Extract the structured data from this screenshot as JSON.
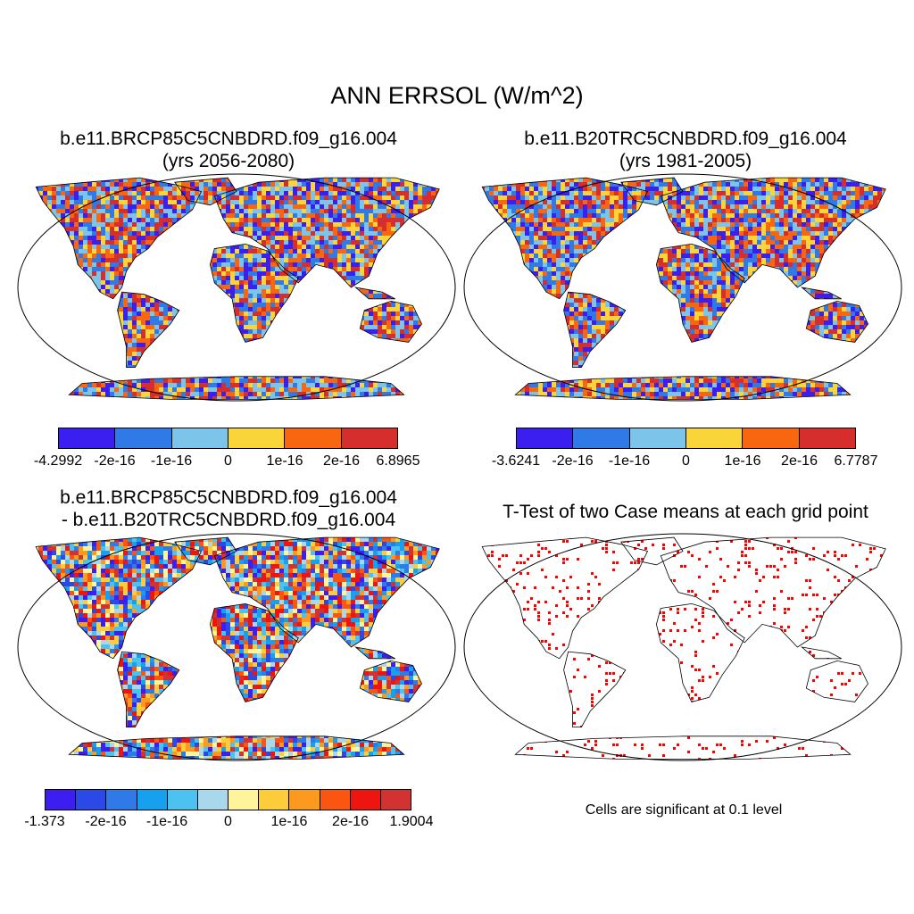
{
  "figure": {
    "title": "ANN ERRSOL (W/m^2)",
    "panels": [
      {
        "id": "case1",
        "title_line1": "b.e11.BRCP85C5CNBDRD.f09_g16.004",
        "title_line2": "(yrs 2056-2080)",
        "colorbar": {
          "colors": [
            "#3b1ef0",
            "#2f7ae6",
            "#7cc4ea",
            "#fad53a",
            "#f8660f",
            "#d62d2d"
          ],
          "labels": [
            "-4.2992",
            "-2e-16",
            "-1e-16",
            "0",
            "1e-16",
            "2e-16",
            "6.8965"
          ]
        }
      },
      {
        "id": "case2",
        "title_line1": "b.e11.B20TRC5CNBDRD.f09_g16.004",
        "title_line2": "(yrs 1981-2005)",
        "colorbar": {
          "colors": [
            "#3b1ef0",
            "#2f7ae6",
            "#7cc4ea",
            "#fad53a",
            "#f8660f",
            "#d62d2d"
          ],
          "labels": [
            "-3.6241",
            "-2e-16",
            "-1e-16",
            "0",
            "1e-16",
            "2e-16",
            "6.7787"
          ]
        }
      },
      {
        "id": "diff",
        "title_line1": "b.e11.BRCP85C5CNBDRD.f09_g16.004",
        "title_line2": "- b.e11.B20TRC5CNBDRD.f09_g16.004",
        "colorbar": {
          "colors": [
            "#3c1ef2",
            "#2a49e6",
            "#2f7ae8",
            "#16a0f0",
            "#4cc2f0",
            "#a9d7ec",
            "#fff499",
            "#fdcc3a",
            "#fb9a1e",
            "#fb5512",
            "#ee1410",
            "#d33233"
          ],
          "labels": [
            "-1.373",
            "-2e-16",
            "-1e-16",
            "0",
            "1e-16",
            "2e-16",
            "1.9004"
          ]
        }
      },
      {
        "id": "ttest",
        "title_line1": "T-Test of two Case means at each grid point",
        "note": "Cells are significant at 0.1 level",
        "marker_color": "#ff0000"
      }
    ]
  }
}
